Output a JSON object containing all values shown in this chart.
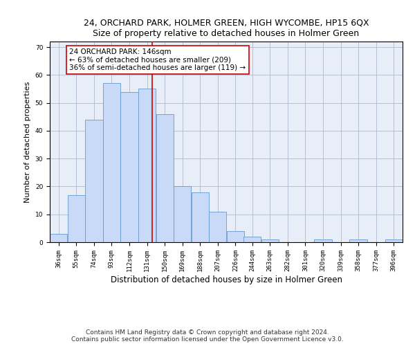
{
  "title": "24, ORCHARD PARK, HOLMER GREEN, HIGH WYCOMBE, HP15 6QX",
  "subtitle": "Size of property relative to detached houses in Holmer Green",
  "xlabel": "Distribution of detached houses by size in Holmer Green",
  "ylabel": "Number of detached properties",
  "bin_edges": [
    36,
    55,
    74,
    93,
    112,
    131,
    150,
    169,
    188,
    207,
    226,
    244,
    263,
    282,
    301,
    320,
    339,
    358,
    377,
    396,
    415
  ],
  "bar_heights": [
    3,
    17,
    44,
    57,
    54,
    55,
    46,
    20,
    18,
    11,
    4,
    2,
    1,
    0,
    0,
    1,
    0,
    1,
    0,
    1
  ],
  "bar_color": "#c9daf8",
  "bar_edge_color": "#6699cc",
  "property_value": 146,
  "vline_color": "#cc0000",
  "annotation_text": "24 ORCHARD PARK: 146sqm\n← 63% of detached houses are smaller (209)\n36% of semi-detached houses are larger (119) →",
  "annotation_box_color": "#ffffff",
  "annotation_box_edge_color": "#cc0000",
  "ylim": [
    0,
    72
  ],
  "yticks": [
    0,
    10,
    20,
    30,
    40,
    50,
    60,
    70
  ],
  "footer_line1": "Contains HM Land Registry data © Crown copyright and database right 2024.",
  "footer_line2": "Contains public sector information licensed under the Open Government Licence v3.0.",
  "background_color": "#e8eef8",
  "title_fontsize": 9,
  "subtitle_fontsize": 8.5,
  "axis_label_fontsize": 8,
  "tick_label_fontsize": 6.5,
  "footer_fontsize": 6.5,
  "annotation_fontsize": 7.5
}
